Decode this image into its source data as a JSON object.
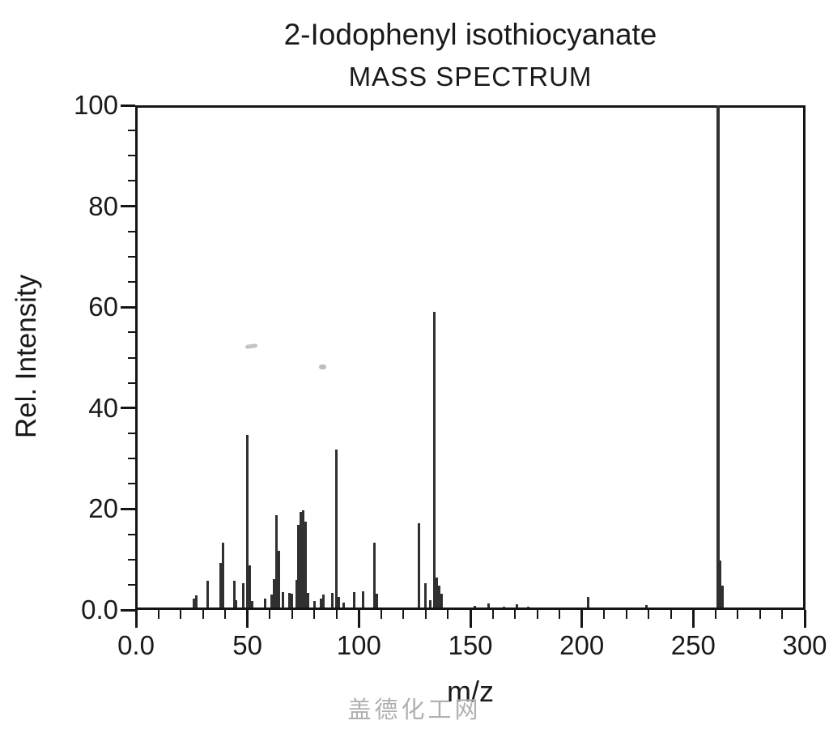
{
  "watermark": "盖德化工网",
  "chart_data": {
    "type": "bar",
    "chart_kind": "mass-spectrum",
    "title": "2-Iodophenyl isothiocyanate",
    "subtitle": "MASS SPECTRUM",
    "xlabel": "m/z",
    "ylabel": "Rel. Intensity",
    "xlim": [
      0,
      300
    ],
    "ylim": [
      0,
      100
    ],
    "grid": false,
    "legend": false,
    "x_axis": {
      "major_ticks": [
        0,
        50,
        100,
        150,
        200,
        250,
        300
      ],
      "tick_labels": [
        "0.0",
        "50",
        "100",
        "150",
        "200",
        "250",
        "300"
      ],
      "minor_step": 10
    },
    "y_axis": {
      "major_ticks": [
        0,
        20,
        40,
        60,
        80,
        100
      ],
      "tick_labels": [
        "0.0",
        "20",
        "40",
        "60",
        "80",
        "100"
      ],
      "minor_step": 5
    },
    "bar_color": "#303030",
    "base_peak_mz": 261,
    "peaks": [
      [
        26,
        2.3
      ],
      [
        27,
        2.9
      ],
      [
        32,
        5.8
      ],
      [
        38,
        9.3
      ],
      [
        39,
        13.3
      ],
      [
        44,
        5.8
      ],
      [
        45,
        2.0
      ],
      [
        48,
        5.3
      ],
      [
        50,
        34.7
      ],
      [
        51,
        8.8
      ],
      [
        52,
        1.8
      ],
      [
        58,
        2.2
      ],
      [
        61,
        3.0
      ],
      [
        62,
        6.1
      ],
      [
        63,
        18.8
      ],
      [
        64,
        11.7
      ],
      [
        66,
        3.5
      ],
      [
        69,
        3.3
      ],
      [
        70,
        3.2
      ],
      [
        72,
        6.0
      ],
      [
        73,
        16.8
      ],
      [
        74,
        19.4
      ],
      [
        75,
        19.8
      ],
      [
        76,
        17.5
      ],
      [
        77,
        3.4
      ],
      [
        80,
        1.8
      ],
      [
        83,
        2.3
      ],
      [
        84,
        3.0
      ],
      [
        88,
        3.4
      ],
      [
        90,
        31.8
      ],
      [
        91,
        2.6
      ],
      [
        93,
        1.5
      ],
      [
        98,
        3.5
      ],
      [
        102,
        3.7
      ],
      [
        107,
        13.3
      ],
      [
        108,
        3.2
      ],
      [
        127,
        17.1
      ],
      [
        130,
        5.3
      ],
      [
        132,
        2.0
      ],
      [
        134,
        59.0
      ],
      [
        135,
        6.4
      ],
      [
        136,
        4.8
      ],
      [
        137,
        3.2
      ],
      [
        152,
        0.8
      ],
      [
        158,
        1.3
      ],
      [
        165,
        0.7
      ],
      [
        171,
        1.1
      ],
      [
        176,
        0.6
      ],
      [
        203,
        2.6
      ],
      [
        229,
        0.9
      ],
      [
        261,
        100.0
      ],
      [
        262,
        9.8
      ],
      [
        263,
        4.8
      ]
    ]
  }
}
